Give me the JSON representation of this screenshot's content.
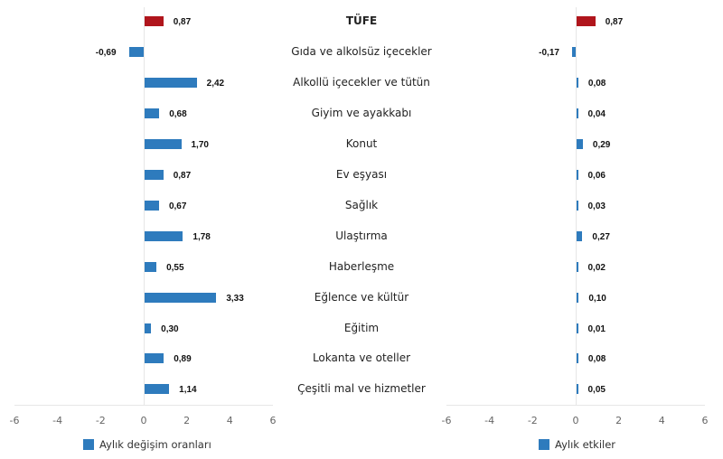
{
  "chart_data": [
    {
      "type": "bar",
      "orientation": "horizontal",
      "title": "",
      "categories": [
        "TÜFE",
        "Gıda ve alkolsüz içecekler",
        "Alkollü içecekler ve tütün",
        "Giyim ve ayakkabı",
        "Konut",
        "Ev eşyası",
        "Sağlık",
        "Ulaştırma",
        "Haberleşme",
        "Eğlence ve kültür",
        "Eğitim",
        "Lokanta ve oteller",
        "Çeşitli mal ve hizmetler"
      ],
      "series": [
        {
          "name": "Aylık değişim oranları",
          "values": [
            0.87,
            -0.69,
            2.42,
            0.68,
            1.7,
            0.87,
            0.67,
            1.78,
            0.55,
            3.33,
            0.3,
            0.89,
            1.14
          ]
        }
      ],
      "value_labels": [
        "0,87",
        "-0,69",
        "2,42",
        "0,68",
        "1,70",
        "0,87",
        "0,67",
        "1,78",
        "0,55",
        "3,33",
        "0,30",
        "0,89",
        "1,14"
      ],
      "xlabel": "",
      "ylabel": "",
      "xlim": [
        -6,
        6
      ],
      "xticks": [
        "-6",
        "-4",
        "-2",
        "0",
        "2",
        "4",
        "6"
      ],
      "grid": false,
      "legend_position": "bottom",
      "colors": {
        "total": "#b0151c",
        "series": "#2e7bbd"
      }
    },
    {
      "type": "bar",
      "orientation": "horizontal",
      "title": "",
      "categories": [
        "TÜFE",
        "Gıda ve alkolsüz içecekler",
        "Alkollü içecekler ve tütün",
        "Giyim ve ayakkabı",
        "Konut",
        "Ev eşyası",
        "Sağlık",
        "Ulaştırma",
        "Haberleşme",
        "Eğlence ve kültür",
        "Eğitim",
        "Lokanta ve oteller",
        "Çeşitli mal ve hizmetler"
      ],
      "series": [
        {
          "name": "Aylık etkiler",
          "values": [
            0.87,
            -0.17,
            0.08,
            0.04,
            0.29,
            0.06,
            0.03,
            0.27,
            0.02,
            0.1,
            0.01,
            0.08,
            0.05
          ]
        }
      ],
      "value_labels": [
        "0,87",
        "-0,17",
        "0,08",
        "0,04",
        "0,29",
        "0,06",
        "0,03",
        "0,27",
        "0,02",
        "0,10",
        "0,01",
        "0,08",
        "0,05"
      ],
      "xlabel": "",
      "ylabel": "",
      "xlim": [
        -6,
        6
      ],
      "xticks": [
        "-6",
        "-4",
        "-2",
        "0",
        "2",
        "4",
        "6"
      ],
      "grid": false,
      "legend_position": "bottom",
      "colors": {
        "total": "#b0151c",
        "series": "#2e7bbd"
      }
    }
  ],
  "categories": [
    "TÜFE",
    "Gıda ve alkolsüz içecekler",
    "Alkollü içecekler ve tütün",
    "Giyim ve ayakkabı",
    "Konut",
    "Ev eşyası",
    "Sağlık",
    "Ulaştırma",
    "Haberleşme",
    "Eğlence ve kültür",
    "Eğitim",
    "Lokanta ve oteller",
    "Çeşitli mal ve hizmetler"
  ],
  "left": {
    "legend": "Aylık değişim oranları",
    "values": [
      0.87,
      -0.69,
      2.42,
      0.68,
      1.7,
      0.87,
      0.67,
      1.78,
      0.55,
      3.33,
      0.3,
      0.89,
      1.14
    ],
    "labels": [
      "0,87",
      "-0,69",
      "2,42",
      "0,68",
      "1,70",
      "0,87",
      "0,67",
      "1,78",
      "0,55",
      "3,33",
      "0,30",
      "0,89",
      "1,14"
    ],
    "ticks": [
      "-6",
      "-4",
      "-2",
      "0",
      "2",
      "4",
      "6"
    ]
  },
  "right": {
    "legend": "Aylık etkiler",
    "values": [
      0.87,
      -0.17,
      0.08,
      0.04,
      0.29,
      0.06,
      0.03,
      0.27,
      0.02,
      0.1,
      0.01,
      0.08,
      0.05
    ],
    "labels": [
      "0,87",
      "-0,17",
      "0,08",
      "0,04",
      "0,29",
      "0,06",
      "0,03",
      "0,27",
      "0,02",
      "0,10",
      "0,01",
      "0,08",
      "0,05"
    ],
    "ticks": [
      "-6",
      "-4",
      "-2",
      "0",
      "2",
      "4",
      "6"
    ]
  },
  "colors": {
    "total": "#b0151c",
    "series": "#2e7bbd",
    "axis": "#e6e6e6"
  }
}
